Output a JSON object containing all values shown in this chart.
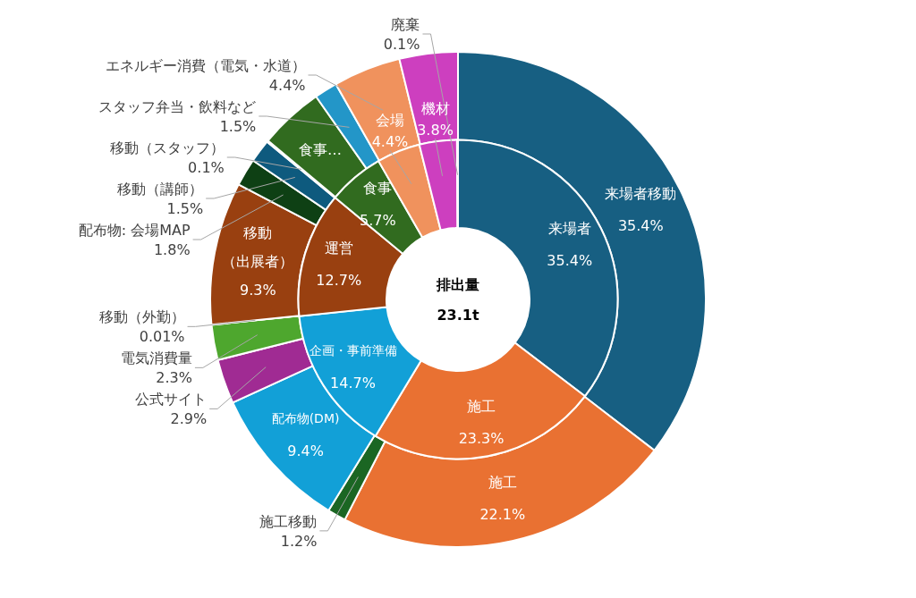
{
  "chart_data": [
    {
      "type": "donut",
      "categories": [
        "来場者",
        "施工",
        "企画・事前準備",
        "運営",
        "食事",
        "会場",
        "機材",
        "廃棄"
      ],
      "values": [
        35.4,
        23.3,
        14.7,
        12.7,
        5.7,
        4.4,
        3.8,
        0.1
      ],
      "colors": [
        "#175f82",
        "#e97132",
        "#12a0d7",
        "#994010",
        "#316b1f",
        "#f0925d",
        "#cd3fbf",
        "#7f7f7f"
      ],
      "value_labels": [
        "35.4%",
        "23.3%",
        "14.7%",
        "12.7%",
        "5.7%",
        "4.4%",
        "3.8%",
        "0.1%"
      ],
      "annotations": [
        "排出量",
        "23.1t"
      ]
    },
    {
      "type": "donut",
      "categories": [
        "来場者移動",
        "施工",
        "施工移動",
        "配布物(DM)",
        "公式サイト",
        "電気消費量",
        "移動（外勤）",
        "移動（出展者）",
        "配布物: 会場MAP",
        "移動（講師）",
        "移動（スタッフ）",
        "食事…",
        "スタッフ弁当・飲料など",
        "エネルギー消費（電気・水道）",
        null
      ],
      "values": [
        35.4,
        22.1,
        1.2,
        9.4,
        2.9,
        2.3,
        0.01,
        9.3,
        1.8,
        1.5,
        0.1,
        4.2,
        1.5,
        4.4,
        3.8
      ],
      "colors": [
        "#175f82",
        "#e97132",
        "#1b6623",
        "#12a0d7",
        "#a02b93",
        "#4ea72e",
        "#7f7f7f",
        "#994010",
        "#0e4014",
        "#0e5a7e",
        "#7f7f7f",
        "#316b1f",
        "#2396c8",
        "#f0925d",
        "#cd3fbf"
      ],
      "value_labels": [
        "35.4%",
        "22.1%",
        "1.2%",
        "9.4%",
        "2.9%",
        "2.3%",
        "0.01%",
        "9.3%",
        "1.8%",
        "1.5%",
        "0.1%",
        null,
        "1.5%",
        "4.4%",
        null
      ]
    }
  ]
}
